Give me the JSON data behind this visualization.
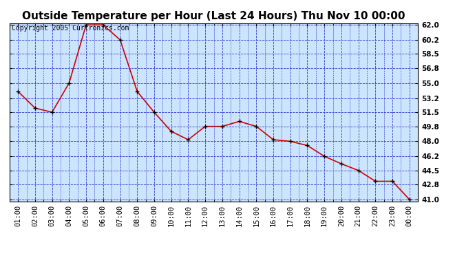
{
  "title": "Outside Temperature per Hour (Last 24 Hours) Thu Nov 10 00:00",
  "copyright": "Copyright 2005 Curtronics.com",
  "x_labels": [
    "01:00",
    "02:00",
    "03:00",
    "04:00",
    "05:00",
    "06:00",
    "07:00",
    "08:00",
    "09:00",
    "10:00",
    "11:00",
    "12:00",
    "13:00",
    "14:00",
    "15:00",
    "16:00",
    "17:00",
    "18:00",
    "19:00",
    "20:00",
    "21:00",
    "22:00",
    "23:00",
    "00:00"
  ],
  "y_values": [
    54.0,
    52.0,
    51.5,
    55.0,
    62.0,
    62.0,
    60.2,
    54.0,
    51.5,
    49.2,
    48.2,
    49.8,
    49.8,
    50.4,
    49.8,
    48.2,
    48.0,
    47.5,
    46.2,
    45.3,
    44.5,
    43.2,
    43.2,
    41.0
  ],
  "line_color": "#cc0000",
  "marker_color": "#000000",
  "fig_bg_color": "#ffffff",
  "plot_bg_color": "#cce5ff",
  "grid_color": "#3333cc",
  "border_color": "#000000",
  "title_color": "#000000",
  "y_min": 41.0,
  "y_max": 62.0,
  "y_ticks": [
    41.0,
    42.8,
    44.5,
    46.2,
    48.0,
    49.8,
    51.5,
    53.2,
    55.0,
    56.8,
    58.5,
    60.2,
    62.0
  ],
  "title_fontsize": 11,
  "tick_fontsize": 7.5,
  "copyright_fontsize": 7
}
